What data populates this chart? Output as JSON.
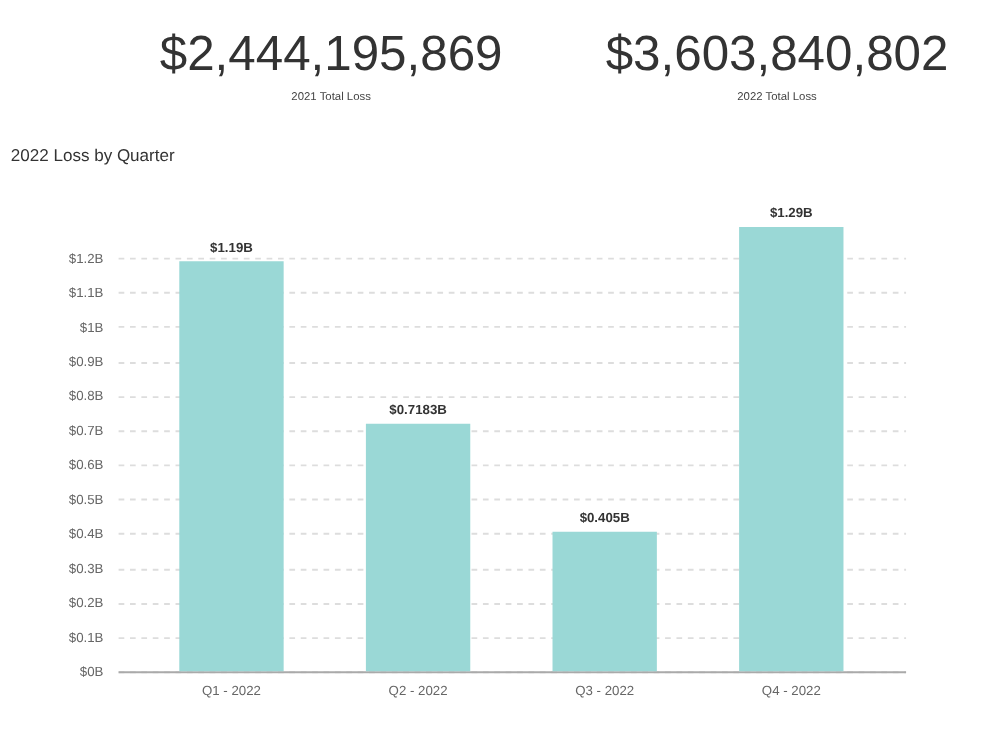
{
  "chart_data": [
    {
      "type": "other",
      "title": "$2,444,195,869",
      "subtitle": "2021 Total Loss"
    },
    {
      "type": "other",
      "title": "$3,603,840,802",
      "subtitle": "2022 Total Loss"
    },
    {
      "type": "bar",
      "title": "2022 Loss by Quarter",
      "categories": [
        "Q1 - 2022",
        "Q2 - 2022",
        "Q3 - 2022",
        "Q4 - 2022"
      ],
      "values": [
        1.19,
        0.7183,
        0.405,
        1.29
      ],
      "color": "#9ad8d6",
      "value_labels": [
        "$1.19B",
        "$0.7183B",
        "$0.405B",
        "$1.29B"
      ],
      "ylim": [
        0,
        1.3
      ],
      "yticks": [
        {
          "value": 0,
          "label": "$0B"
        },
        {
          "value": 0.1,
          "label": "$0.1B"
        },
        {
          "value": 0.2,
          "label": "$0.2B"
        },
        {
          "value": 0.3,
          "label": "$0.3B"
        },
        {
          "value": 0.4,
          "label": "$0.4B"
        },
        {
          "value": 0.5,
          "label": "$0.5B"
        },
        {
          "value": 0.6,
          "label": "$0.6B"
        },
        {
          "value": 0.7,
          "label": "$0.7B"
        },
        {
          "value": 0.8,
          "label": "$0.8B"
        },
        {
          "value": 0.9,
          "label": "$0.9B"
        },
        {
          "value": 1,
          "label": "$1B"
        },
        {
          "value": 1.1,
          "label": "$1.1B"
        },
        {
          "value": 1.2,
          "label": "$1.2B"
        }
      ],
      "grid": "y"
    }
  ]
}
